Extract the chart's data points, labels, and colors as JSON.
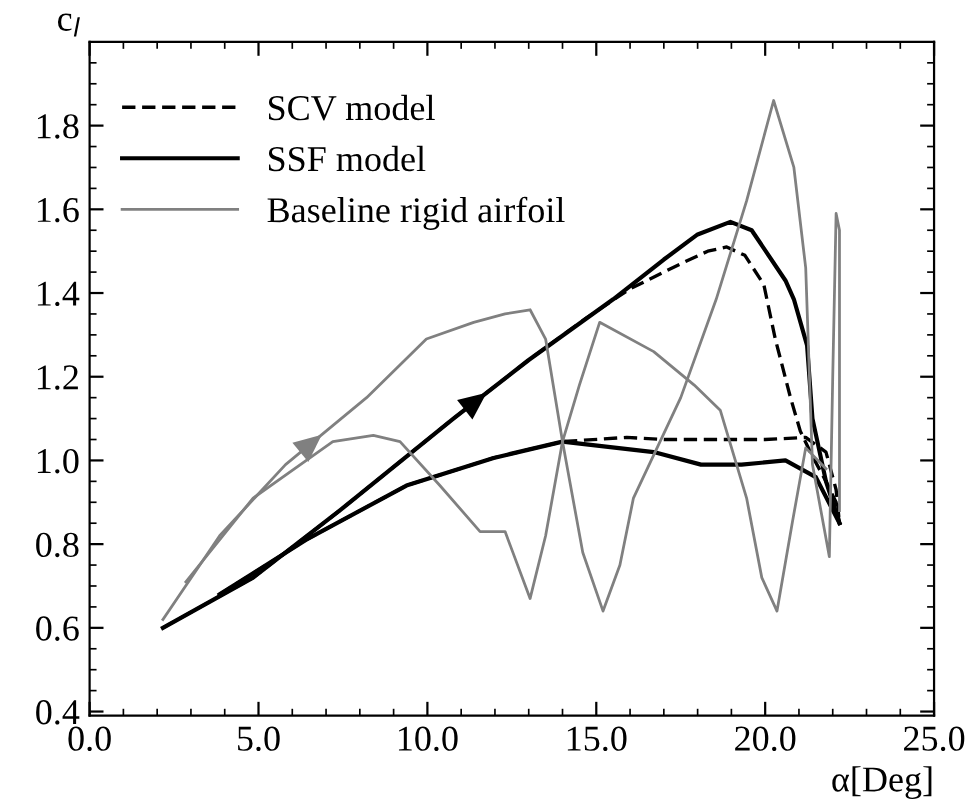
{
  "chart_data": {
    "type": "line",
    "xlabel": "α[Deg]",
    "ylabel": "c$_{l}$",
    "xlim": [
      0,
      25
    ],
    "ylim": [
      0.39,
      2.0
    ],
    "xticks": [
      {
        "value": 0,
        "label": "0.0"
      },
      {
        "value": 5,
        "label": "5.0"
      },
      {
        "value": 10,
        "label": "10.0"
      },
      {
        "value": 15,
        "label": "15.0"
      },
      {
        "value": 20,
        "label": "20.0"
      },
      {
        "value": 25,
        "label": "25.0"
      }
    ],
    "yticks": [
      0.4,
      0.6,
      0.8,
      {
        "value": 1,
        "label": "1.0"
      },
      1.2,
      1.4,
      1.6,
      1.8
    ],
    "grid": false,
    "legend": "top left",
    "marker": "none",
    "series": [
      {
        "name": "SCV model",
        "color": "#000000",
        "line_style": "dashed",
        "x": [
          2.17,
          4.84,
          7.4,
          10.77,
          13.0,
          14.7,
          16.0,
          17.5,
          18.3,
          18.86,
          19.4,
          19.96,
          20.3,
          20.75,
          21.04,
          21.4,
          21.8,
          22.1,
          22.2
        ],
        "values": [
          0.6,
          0.72,
          0.88,
          1.1,
          1.24,
          1.34,
          1.41,
          1.47,
          1.5,
          1.51,
          1.49,
          1.42,
          1.29,
          1.15,
          1.07,
          1.01,
          0.95,
          0.9,
          0.85
        ]
      },
      {
        "color": "#000000",
        "line_style": "dashed",
        "x": [
          3.85,
          6.4,
          9.38,
          11.96,
          14.0,
          15.9,
          17.0,
          18.7,
          20.0,
          21.2,
          21.8,
          22.1,
          22.2
        ],
        "values": [
          0.68,
          0.81,
          0.94,
          1.006,
          1.045,
          1.055,
          1.05,
          1.05,
          1.05,
          1.055,
          1.02,
          0.93,
          0.85
        ]
      },
      {
        "name": "SSF model",
        "color": "#000000",
        "line_style": "solid",
        "x": [
          2.17,
          4.84,
          7.4,
          10.77,
          13.0,
          15.5,
          17.0,
          18.0,
          18.97,
          19.6,
          20.6,
          20.85,
          21.24,
          21.4,
          21.8,
          22.2
        ],
        "values": [
          0.6,
          0.72,
          0.88,
          1.1,
          1.24,
          1.385,
          1.48,
          1.54,
          1.57,
          1.55,
          1.43,
          1.385,
          1.275,
          1.1,
          0.95,
          0.85
        ]
      },
      {
        "color": "#000000",
        "line_style": "solid",
        "x": [
          3.85,
          6.4,
          9.38,
          11.96,
          14.0,
          16.7,
          18.1,
          19.3,
          20.6,
          21.5,
          22.2
        ],
        "values": [
          0.68,
          0.81,
          0.94,
          1.006,
          1.045,
          1.02,
          0.99,
          0.99,
          1.0,
          0.96,
          0.85
        ]
      },
      {
        "name": "Baseline rigid airfoil",
        "color": "#808080",
        "line_style": "solid",
        "x": [
          2.17,
          3.85,
          5.8,
          8.2,
          9.97,
          11.37,
          12.3,
          13.04,
          13.5,
          14.0,
          14.6,
          15.2,
          15.7,
          16.1,
          17.5,
          18.55,
          19.45,
          20.25,
          20.85,
          21.2,
          21.4,
          21.9,
          22.0,
          22.1,
          22.2,
          22.2
        ],
        "values": [
          0.62,
          0.82,
          0.99,
          1.15,
          1.29,
          1.33,
          1.35,
          1.36,
          1.29,
          1.045,
          0.78,
          0.64,
          0.75,
          0.91,
          1.15,
          1.385,
          1.62,
          1.86,
          1.7,
          1.46,
          0.99,
          0.77,
          1.2,
          1.59,
          1.55,
          0.88
        ]
      },
      {
        "color": "#808080",
        "line_style": "solid",
        "x": [
          2.85,
          4.84,
          7.2,
          8.4,
          9.19,
          10.37,
          11.56,
          12.3,
          13.04,
          13.5,
          14.0,
          14.5,
          15.1,
          16.7,
          17.9,
          18.67,
          19.45,
          19.9,
          20.35,
          20.8,
          21.2,
          21.8
        ],
        "values": [
          0.71,
          0.91,
          1.045,
          1.06,
          1.045,
          0.94,
          0.83,
          0.83,
          0.67,
          0.82,
          1.045,
          1.18,
          1.33,
          1.26,
          1.18,
          1.12,
          0.91,
          0.72,
          0.64,
          0.85,
          1.03,
          0.98
        ]
      }
    ]
  }
}
